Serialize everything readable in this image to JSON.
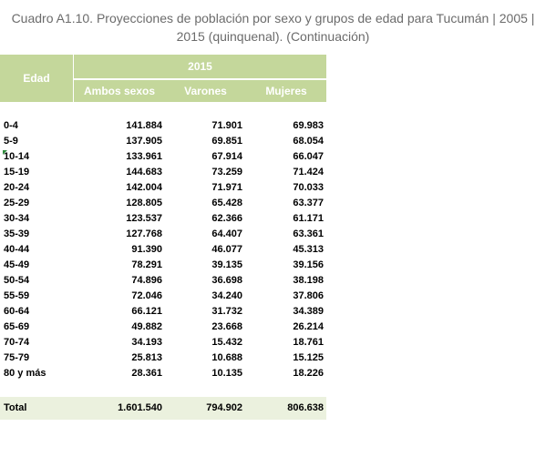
{
  "title": "Cuadro A1.10. Proyecciones de población por sexo y grupos de edad para Tucumán | 2005 | 2015 (quinquenal). (Continuación)",
  "table": {
    "header": {
      "age": "Edad",
      "year": "2015",
      "columns": [
        "Ambos sexos",
        "Varones",
        "Mujeres"
      ]
    },
    "rows": [
      [
        "0-4",
        "141.884",
        "71.901",
        "69.983"
      ],
      [
        "5-9",
        "137.905",
        "69.851",
        "68.054"
      ],
      [
        "10-14",
        "133.961",
        "67.914",
        "66.047"
      ],
      [
        "15-19",
        "144.683",
        "73.259",
        "71.424"
      ],
      [
        "20-24",
        "142.004",
        "71.971",
        "70.033"
      ],
      [
        "25-29",
        "128.805",
        "65.428",
        "63.377"
      ],
      [
        "30-34",
        "123.537",
        "62.366",
        "61.171"
      ],
      [
        "35-39",
        "127.768",
        "64.407",
        "63.361"
      ],
      [
        "40-44",
        "91.390",
        "46.077",
        "45.313"
      ],
      [
        "45-49",
        "78.291",
        "39.135",
        "39.156"
      ],
      [
        "50-54",
        "74.896",
        "36.698",
        "38.198"
      ],
      [
        "55-59",
        "72.046",
        "34.240",
        "37.806"
      ],
      [
        "60-64",
        "66.121",
        "31.732",
        "34.389"
      ],
      [
        "65-69",
        "49.882",
        "23.668",
        "26.214"
      ],
      [
        "70-74",
        "34.193",
        "15.432",
        "18.761"
      ],
      [
        "75-79",
        "25.813",
        "10.688",
        "15.125"
      ],
      [
        "80 y más",
        "28.361",
        "10.135",
        "18.226"
      ]
    ],
    "total": [
      "Total",
      "1.601.540",
      "794.902",
      "806.638"
    ]
  }
}
